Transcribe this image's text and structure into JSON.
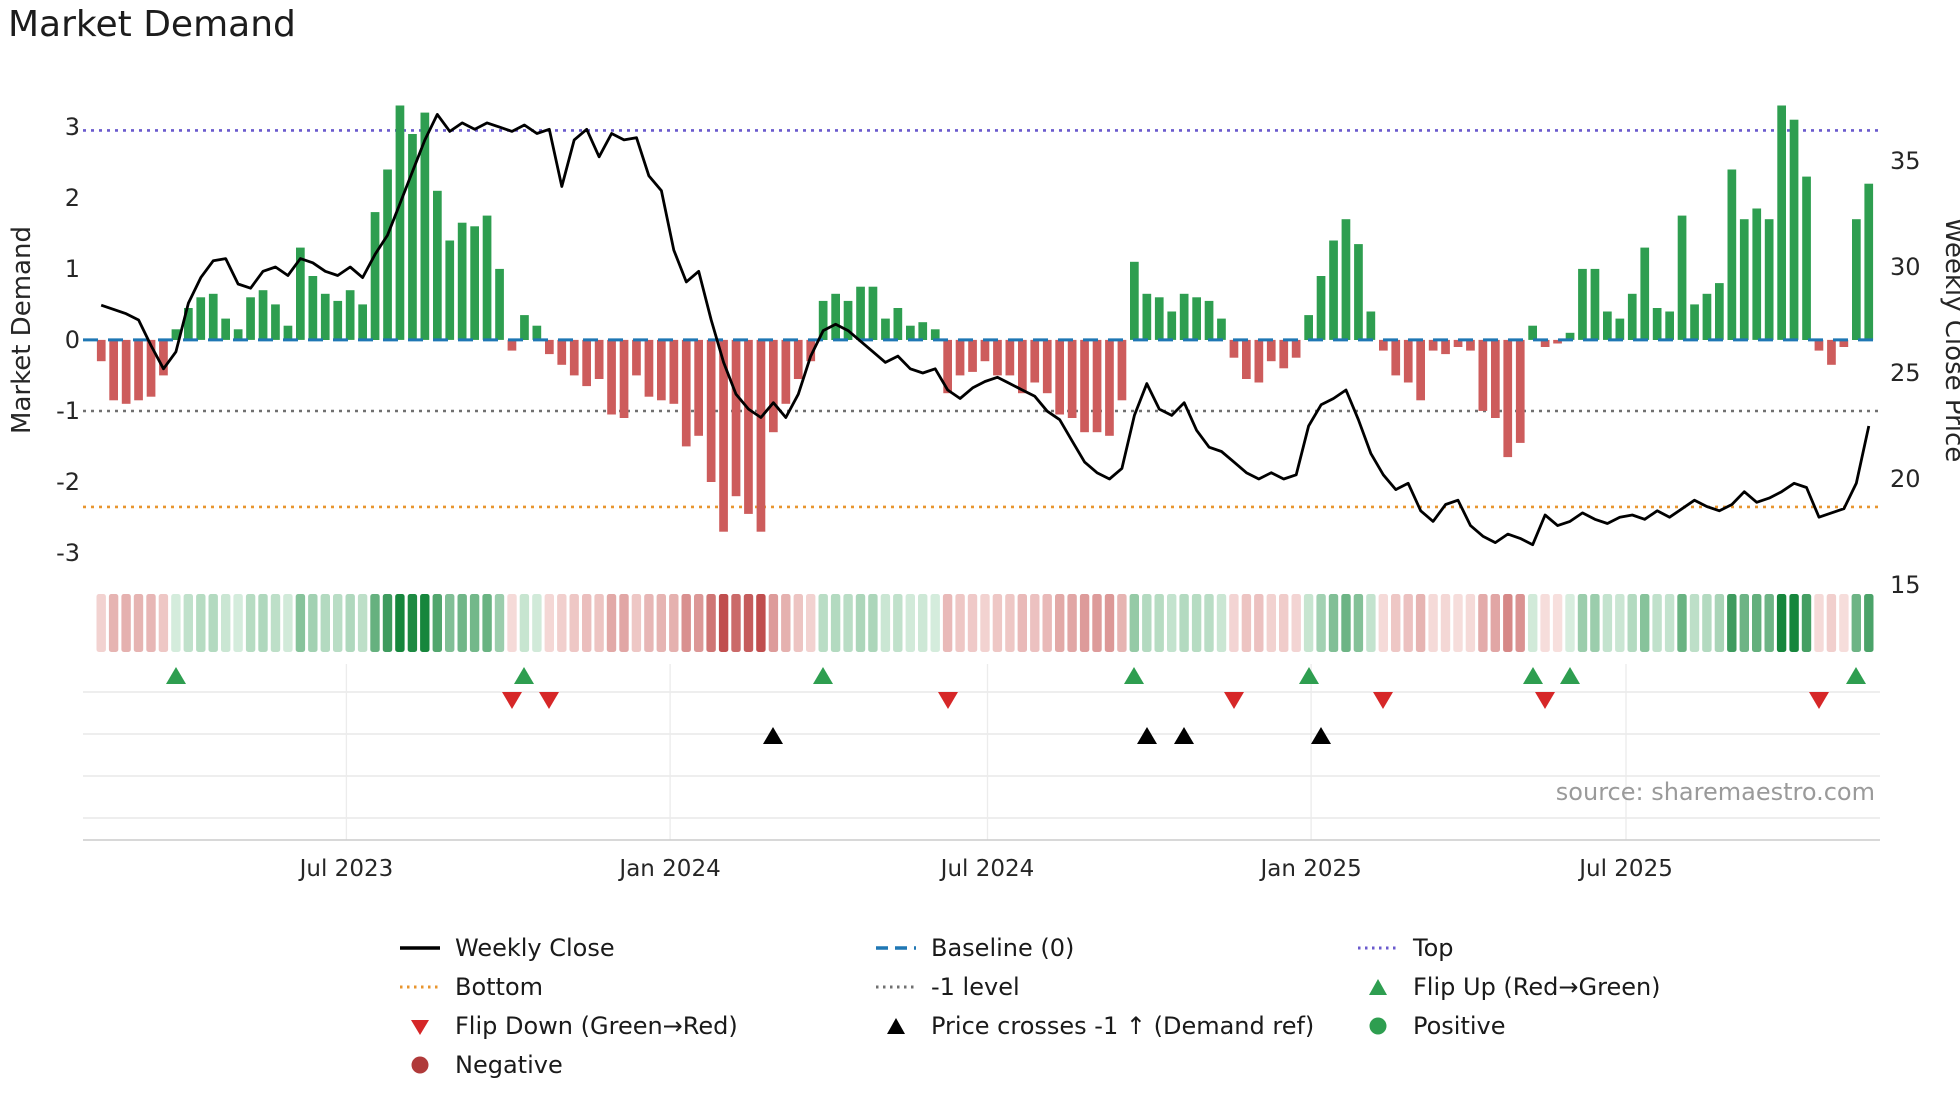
{
  "title": "Market Demand",
  "source": "source: sharemaestro.com",
  "colors": {
    "positive": "#2e9e50",
    "negative": "#cd5c5c",
    "negative_dark": "#b03a3a",
    "price_line": "#000000",
    "baseline": "#1f77b4",
    "top": "#6a5acd",
    "bottom": "#e8952e",
    "minus1": "#707070",
    "flip_up": "#2e9e50",
    "flip_down": "#d62728",
    "price_cross": "#000000",
    "grid": "#e3e3e3"
  },
  "chart_data": {
    "type": "bar",
    "combo": "bar+line+heatmap-strip+event-markers",
    "x_unit": "weekly",
    "x_range": "Feb 2023 - Nov 2025",
    "title": "Market Demand",
    "ylabel_left": "Market Demand",
    "ylabel_right": "Weekly Close Price",
    "ylim_left": [
      -3.45,
      3.73
    ],
    "ylim_right": [
      15.0,
      39.06
    ],
    "y_ticks_left": [
      3,
      2,
      1,
      0,
      -1,
      -2,
      -3
    ],
    "y_ticks_right": [
      15,
      20,
      25,
      30,
      35
    ],
    "x_ticks": [
      {
        "week": 19.7,
        "label": "Jul 2023"
      },
      {
        "week": 45.7,
        "label": "Jan 2024"
      },
      {
        "week": 71.2,
        "label": "Jul 2024"
      },
      {
        "week": 97.2,
        "label": "Jan 2025"
      },
      {
        "week": 122.5,
        "label": "Jul 2025"
      }
    ],
    "reference_lines": {
      "top": 2.95,
      "baseline": 0,
      "minus1": -1,
      "bottom": -2.35
    },
    "series": [
      {
        "name": "Market Demand",
        "type": "bar",
        "axis": "left",
        "values": [
          -0.3,
          -0.85,
          -0.9,
          -0.85,
          -0.8,
          -0.5,
          0.15,
          0.45,
          0.6,
          0.65,
          0.3,
          0.15,
          0.6,
          0.7,
          0.5,
          0.2,
          1.3,
          0.9,
          0.65,
          0.55,
          0.7,
          0.5,
          1.8,
          2.4,
          3.3,
          2.9,
          3.2,
          2.1,
          1.4,
          1.65,
          1.6,
          1.75,
          1.0,
          -0.15,
          0.35,
          0.2,
          -0.2,
          -0.35,
          -0.5,
          -0.65,
          -0.55,
          -1.05,
          -1.1,
          -0.5,
          -0.8,
          -0.85,
          -0.9,
          -1.5,
          -1.35,
          -2.0,
          -2.7,
          -2.2,
          -2.45,
          -2.7,
          -1.3,
          -0.9,
          -0.55,
          -0.3,
          0.55,
          0.65,
          0.55,
          0.75,
          0.75,
          0.3,
          0.45,
          0.2,
          0.25,
          0.15,
          -0.75,
          -0.5,
          -0.45,
          -0.3,
          -0.5,
          -0.5,
          -0.75,
          -0.6,
          -0.75,
          -1.05,
          -1.1,
          -1.3,
          -1.3,
          -1.35,
          -0.85,
          1.1,
          0.65,
          0.6,
          0.4,
          0.65,
          0.6,
          0.55,
          0.3,
          -0.25,
          -0.55,
          -0.6,
          -0.3,
          -0.4,
          -0.25,
          0.35,
          0.9,
          1.4,
          1.7,
          1.35,
          0.4,
          -0.15,
          -0.5,
          -0.6,
          -0.85,
          -0.15,
          -0.2,
          -0.1,
          -0.15,
          -1.0,
          -1.1,
          -1.65,
          -1.45,
          0.2,
          -0.1,
          -0.05,
          0.1,
          1.0,
          1.0,
          0.4,
          0.3,
          0.65,
          1.3,
          0.45,
          0.4,
          1.75,
          0.5,
          0.65,
          0.8,
          2.4,
          1.7,
          1.85,
          1.7,
          3.3,
          3.1,
          2.3,
          -0.15,
          -0.35,
          -0.1,
          1.7,
          2.2
        ]
      },
      {
        "name": "Weekly Close",
        "type": "line",
        "axis": "right",
        "values": [
          28.2,
          28.0,
          27.8,
          27.5,
          26.3,
          25.2,
          26.0,
          28.3,
          29.5,
          30.3,
          30.4,
          29.2,
          29.0,
          29.8,
          30.0,
          29.6,
          30.4,
          30.2,
          29.8,
          29.6,
          30.0,
          29.5,
          30.6,
          31.5,
          33.0,
          34.5,
          36.0,
          37.2,
          36.4,
          36.8,
          36.5,
          36.8,
          36.6,
          36.4,
          36.7,
          36.3,
          36.5,
          33.8,
          36.0,
          36.5,
          35.2,
          36.3,
          36.0,
          36.1,
          34.3,
          33.6,
          30.8,
          29.3,
          29.8,
          27.5,
          25.5,
          24.0,
          23.3,
          22.9,
          23.6,
          22.9,
          24.0,
          25.8,
          27.0,
          27.3,
          27.0,
          26.5,
          26.0,
          25.5,
          25.8,
          25.2,
          25.0,
          25.2,
          24.2,
          23.8,
          24.3,
          24.6,
          24.8,
          24.5,
          24.2,
          23.9,
          23.2,
          22.8,
          21.8,
          20.8,
          20.3,
          20.0,
          20.5,
          23.0,
          24.5,
          23.3,
          23.0,
          23.6,
          22.3,
          21.5,
          21.3,
          20.8,
          20.3,
          20.0,
          20.3,
          20.0,
          20.2,
          22.5,
          23.5,
          23.8,
          24.2,
          22.8,
          21.2,
          20.2,
          19.5,
          19.8,
          18.5,
          18.0,
          18.8,
          19.0,
          17.8,
          17.3,
          17.0,
          17.4,
          17.2,
          16.9,
          18.3,
          17.8,
          18.0,
          18.4,
          18.1,
          17.9,
          18.2,
          18.3,
          18.1,
          18.5,
          18.2,
          18.6,
          19.0,
          18.7,
          18.5,
          18.8,
          19.4,
          18.9,
          19.1,
          19.4,
          19.8,
          19.6,
          18.2,
          18.4,
          18.6,
          19.8,
          22.5
        ]
      }
    ],
    "markers": {
      "flip_up_weeks": [
        6,
        34,
        58,
        83,
        97,
        115,
        118,
        141
      ],
      "flip_down_weeks": [
        33,
        36,
        68,
        91,
        103,
        116,
        138
      ],
      "price_cross_minus1_weeks": [
        54,
        84,
        87,
        98
      ]
    },
    "heatmap_strip": "color intensity of weekly Market Demand values (green positive, red negative)"
  },
  "legend": {
    "columns": [
      {
        "items": [
          {
            "id": "weekly-close",
            "label": "Weekly Close",
            "symbol": "line",
            "color": "#000000"
          },
          {
            "id": "bottom",
            "label": "Bottom",
            "symbol": "dotted",
            "color": "#e8952e"
          },
          {
            "id": "flip-down",
            "label": "Flip Down (Green→Red)",
            "symbol": "triangle-down",
            "color": "#d62728"
          },
          {
            "id": "negative",
            "label": "Negative",
            "symbol": "circle",
            "color": "#b03a3a"
          }
        ]
      },
      {
        "items": [
          {
            "id": "baseline",
            "label": "Baseline (0)",
            "symbol": "dashed",
            "color": "#1f77b4"
          },
          {
            "id": "minus1-level",
            "label": "-1 level",
            "symbol": "dotted",
            "color": "#707070"
          },
          {
            "id": "price-cross",
            "label": "Price crosses -1 ↑ (Demand ref)",
            "symbol": "triangle-up",
            "color": "#000000"
          }
        ]
      },
      {
        "items": [
          {
            "id": "top",
            "label": "Top",
            "symbol": "dotted",
            "color": "#6a5acd"
          },
          {
            "id": "flip-up",
            "label": "Flip Up (Red→Green)",
            "symbol": "triangle-up",
            "color": "#2e9e50"
          },
          {
            "id": "positive",
            "label": "Positive",
            "symbol": "circle",
            "color": "#2e9e50"
          }
        ]
      }
    ]
  }
}
